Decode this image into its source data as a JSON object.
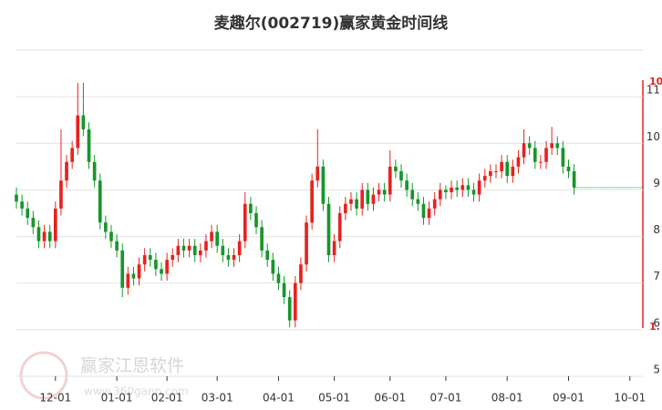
{
  "chart_data": {
    "type": "candlestick",
    "title": "麦趣尔(002719)赢家黄金时间线",
    "watermark": "赢家江恩软件",
    "watermark_url": "www.360gann.com",
    "annotations": [
      "10",
      "1."
    ],
    "up_color": "#e5231f",
    "down_color": "#16962a",
    "open": [
      8.9,
      8.75,
      8.6,
      8.4,
      8.2,
      7.9,
      8.1,
      7.9,
      8.6,
      9.2,
      9.6,
      9.9,
      10.6,
      10.3,
      9.6,
      9.2,
      8.3,
      8.1,
      7.9,
      7.7,
      6.9,
      7.2,
      7.1,
      7.4,
      7.6,
      7.5,
      7.3,
      7.2,
      7.5,
      7.6,
      7.8,
      7.7,
      7.8,
      7.6,
      7.7,
      7.9,
      8.1,
      7.8,
      7.6,
      7.5,
      7.6,
      7.9,
      8.7,
      8.5,
      8.2,
      7.7,
      7.5,
      7.2,
      7.0,
      6.7,
      6.2,
      7.0,
      7.4,
      8.3,
      9.2,
      9.5,
      8.7,
      7.6,
      7.9,
      8.5,
      8.7,
      8.8,
      8.6,
      9.0,
      8.7,
      8.9,
      9.0,
      8.9,
      9.5,
      9.4,
      9.2,
      9.0,
      8.8,
      8.7,
      8.4,
      8.6,
      8.8,
      9.0,
      8.95,
      9.05,
      9.0,
      9.1,
      9.0,
      8.9,
      9.2,
      9.3,
      9.4,
      9.4,
      9.6,
      9.3,
      9.5,
      9.7,
      10.0,
      9.9,
      9.6,
      9.6,
      9.9,
      10.0,
      9.9,
      9.5,
      9.4
    ],
    "high": [
      9.05,
      8.9,
      8.75,
      8.55,
      8.35,
      8.25,
      8.25,
      8.75,
      10.3,
      9.75,
      10.05,
      11.3,
      11.3,
      10.45,
      9.75,
      9.35,
      8.45,
      8.25,
      8.05,
      7.85,
      7.35,
      7.35,
      7.55,
      7.75,
      7.75,
      7.65,
      7.45,
      7.65,
      7.75,
      7.95,
      7.95,
      7.95,
      7.95,
      7.85,
      8.05,
      8.25,
      8.25,
      7.95,
      7.75,
      7.75,
      8.05,
      8.95,
      8.85,
      8.65,
      8.35,
      7.85,
      7.65,
      7.35,
      7.15,
      6.85,
      7.15,
      7.55,
      8.45,
      9.35,
      10.3,
      9.65,
      8.85,
      8.05,
      8.65,
      8.85,
      8.95,
      8.95,
      9.15,
      9.15,
      9.05,
      9.15,
      9.15,
      9.85,
      9.65,
      9.55,
      9.35,
      9.15,
      8.95,
      8.85,
      8.75,
      8.95,
      9.15,
      9.1,
      9.2,
      9.2,
      9.25,
      9.25,
      9.15,
      9.35,
      9.45,
      9.55,
      9.55,
      9.75,
      9.75,
      9.65,
      9.85,
      10.3,
      10.15,
      10.05,
      9.75,
      10.05,
      10.35,
      10.15,
      10.05,
      9.65,
      9.55
    ],
    "low": [
      8.6,
      8.45,
      8.25,
      8.05,
      7.75,
      7.75,
      7.75,
      7.75,
      8.45,
      9.05,
      9.45,
      9.75,
      10.15,
      9.45,
      9.05,
      8.15,
      7.95,
      7.75,
      7.55,
      6.7,
      6.75,
      6.95,
      6.95,
      7.25,
      7.35,
      7.15,
      7.05,
      7.05,
      7.35,
      7.45,
      7.55,
      7.55,
      7.45,
      7.45,
      7.55,
      7.75,
      7.65,
      7.45,
      7.35,
      7.35,
      7.45,
      7.75,
      8.35,
      8.05,
      7.55,
      7.35,
      7.05,
      6.85,
      6.55,
      6.05,
      6.05,
      6.85,
      7.25,
      8.15,
      9.05,
      8.55,
      7.45,
      7.45,
      7.75,
      8.35,
      8.55,
      8.45,
      8.45,
      8.55,
      8.55,
      8.75,
      8.75,
      8.75,
      9.25,
      9.05,
      8.85,
      8.65,
      8.55,
      8.25,
      8.25,
      8.45,
      8.65,
      8.8,
      8.8,
      8.85,
      8.85,
      8.85,
      8.75,
      8.75,
      9.05,
      9.15,
      9.25,
      9.25,
      9.15,
      9.15,
      9.35,
      9.55,
      9.75,
      9.45,
      9.45,
      9.45,
      9.75,
      9.75,
      9.35,
      9.25,
      8.9
    ],
    "close": [
      8.75,
      8.6,
      8.4,
      8.2,
      7.9,
      8.1,
      7.9,
      8.6,
      9.2,
      9.6,
      9.9,
      10.6,
      10.3,
      9.6,
      9.2,
      8.3,
      8.1,
      7.9,
      7.7,
      6.9,
      7.2,
      7.1,
      7.4,
      7.6,
      7.5,
      7.3,
      7.2,
      7.5,
      7.6,
      7.8,
      7.7,
      7.8,
      7.6,
      7.7,
      7.9,
      8.1,
      7.8,
      7.6,
      7.5,
      7.6,
      7.9,
      8.7,
      8.5,
      8.2,
      7.7,
      7.5,
      7.2,
      7.0,
      6.7,
      6.2,
      7.0,
      7.4,
      8.3,
      9.2,
      9.5,
      8.7,
      7.6,
      7.9,
      8.5,
      8.7,
      8.8,
      8.6,
      9.0,
      8.7,
      8.9,
      9.0,
      8.9,
      9.5,
      9.4,
      9.2,
      9.0,
      8.8,
      8.7,
      8.4,
      8.6,
      8.8,
      9.0,
      8.95,
      9.05,
      9.0,
      9.1,
      9.0,
      8.9,
      9.2,
      9.3,
      9.4,
      9.4,
      9.6,
      9.3,
      9.5,
      9.7,
      10.0,
      9.9,
      9.6,
      9.6,
      9.9,
      10.0,
      9.9,
      9.5,
      9.4,
      9.05
    ],
    "last_price": 9.05,
    "xlim": [
      0,
      112
    ],
    "xticks": [
      {
        "value": 7,
        "label": "12-01"
      },
      {
        "value": 18,
        "label": "01-01"
      },
      {
        "value": 27,
        "label": "02-01"
      },
      {
        "value": 36,
        "label": "03-01"
      },
      {
        "value": 47,
        "label": "04-01"
      },
      {
        "value": 57,
        "label": "05-01"
      },
      {
        "value": 67,
        "label": "06-01"
      },
      {
        "value": 77,
        "label": "07-01"
      },
      {
        "value": 88,
        "label": "08-01"
      },
      {
        "value": 99,
        "label": "09-01"
      },
      {
        "value": 110,
        "label": "10-01"
      }
    ],
    "ylim": [
      5,
      12
    ],
    "yticks": [
      5,
      6,
      7,
      8,
      9,
      10,
      11
    ],
    "grid": true
  }
}
